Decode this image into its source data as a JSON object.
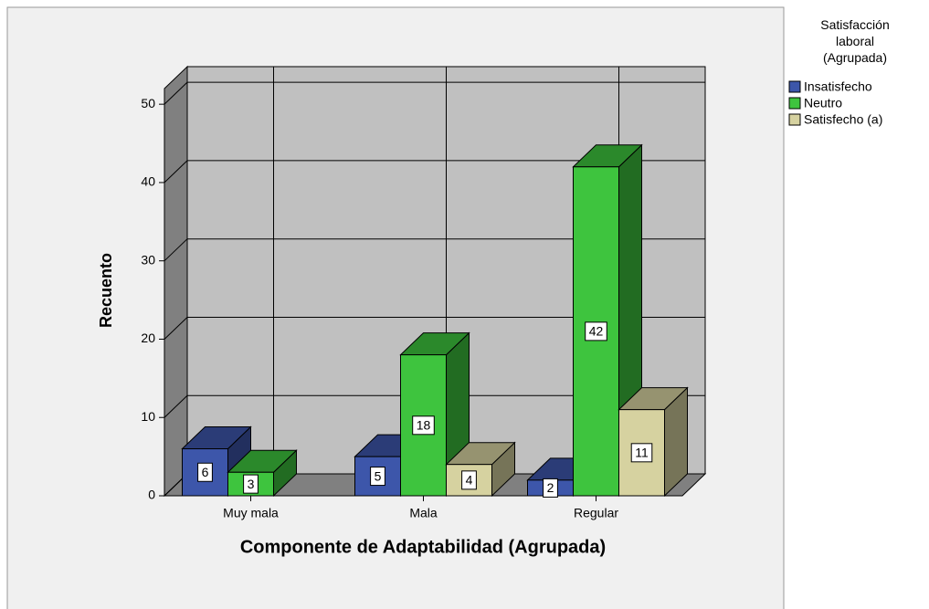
{
  "chart_data": {
    "type": "bar3d",
    "x_label": "Componente de Adaptabilidad (Agrupada)",
    "y_label": "Recuento",
    "legend_title": "Satisfacción laboral (Agrupada)",
    "legend_position": "right",
    "categories": [
      "Muy mala",
      "Mala",
      "Regular"
    ],
    "series": [
      {
        "name": "Insatisfecho",
        "color": "#3d56aa",
        "values": [
          6,
          5,
          2
        ]
      },
      {
        "name": "Neutro",
        "color": "#3ec43e",
        "values": [
          3,
          18,
          42
        ]
      },
      {
        "name": "Satisfecho (a)",
        "color": "#d6d2a0",
        "values": [
          null,
          4,
          11
        ]
      }
    ],
    "ylim": [
      0,
      52
    ],
    "yticks": [
      0,
      10,
      20,
      30,
      40,
      50
    ],
    "grid": true
  }
}
